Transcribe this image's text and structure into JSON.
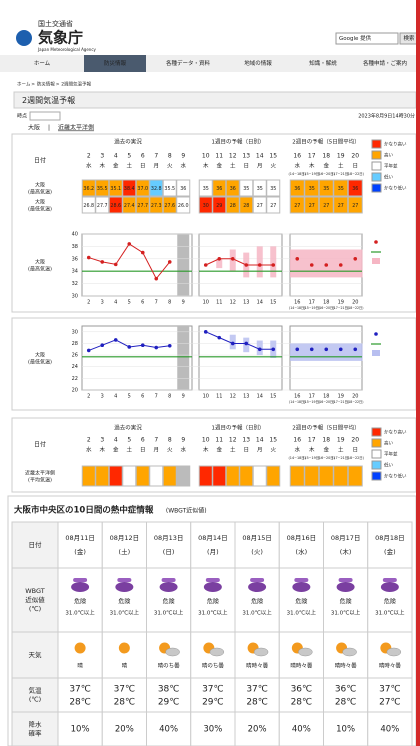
{
  "header": {
    "agency": "国土交通省",
    "title": "気象庁",
    "subtitle": "Japan Meteorological Agency",
    "search_provider": "Google 提供",
    "search_button": "検索"
  },
  "nav": [
    "ホーム",
    "防災情報",
    "各種データ・資料",
    "地域の情報",
    "知識・解説",
    "各種申請・ご案内"
  ],
  "breadcrumb": [
    "ホーム",
    "防災情報",
    "2週間気温予報"
  ],
  "page_title": "2週間気温予報",
  "time_label": "時点",
  "issued": "2023年8月9日14時30分",
  "tabs": [
    "大阪",
    "近畿太平洋側"
  ],
  "forecast": {
    "headers": [
      "過去の実況",
      "1週目の予報（日別）",
      "2週目の予報（5日間平均）"
    ],
    "date_label": "日付",
    "dates": [
      2,
      3,
      4,
      5,
      6,
      7,
      8,
      9,
      10,
      11,
      12,
      13,
      14,
      15,
      16,
      17,
      18,
      19,
      20
    ],
    "weekdays": [
      "水",
      "木",
      "金",
      "土",
      "日",
      "月",
      "火",
      "水",
      "木",
      "金",
      "土",
      "日",
      "月",
      "火",
      "水",
      "木",
      "金",
      "土",
      "日"
    ],
    "week2_ranges": [
      "(14~18日)",
      "(15~19日)",
      "(16~20日)",
      "(17~21日)",
      "(18~22日)"
    ],
    "legend": [
      {
        "label": "かなり高い",
        "color": "#ff2800"
      },
      {
        "label": "高い",
        "color": "#ffa500"
      },
      {
        "label": "平年並",
        "color": "#ffffff"
      },
      {
        "label": "低い",
        "color": "#66ccff"
      },
      {
        "label": "かなり低い",
        "color": "#0041ff"
      }
    ],
    "max": {
      "label": [
        "大阪",
        "(最高気温)"
      ],
      "values": [
        36.2,
        35.5,
        35.1,
        38.4,
        {
          "value": 37,
          "label": "37.0"
        },
        32.8,
        35.5,
        36,
        35,
        36,
        36,
        35,
        35,
        35,
        36,
        35,
        35,
        35,
        36
      ],
      "colors": [
        "#ffa500",
        "#ffa500",
        "#ffa500",
        "#ff2800",
        "#ffa500",
        "#66ccff",
        "#ffffff",
        "#ffffff",
        "#ffffff",
        "#ffa500",
        "#ffa500",
        "#ffffff",
        "#ffffff",
        "#ffffff",
        "#ffa500",
        "#ffa500",
        "#ffa500",
        "#ffa500",
        "#ff2800"
      ],
      "ranges": [
        null,
        null,
        null,
        null,
        null,
        null,
        null,
        null,
        null,
        [
          34.5,
          36
        ],
        [
          34,
          37.5
        ],
        [
          33,
          37
        ],
        [
          33,
          38
        ],
        [
          33,
          38
        ],
        [
          33,
          37.5
        ],
        [
          33,
          37.5
        ],
        [
          33,
          37.5
        ],
        [
          33,
          37.5
        ],
        [
          33,
          37.5
        ]
      ],
      "normal": 34,
      "ylim": [
        30,
        40
      ],
      "yticks": [
        30,
        32,
        34,
        36,
        38,
        40
      ],
      "color": "#d42020"
    },
    "min": {
      "label": [
        "大阪",
        "(最低気温)"
      ],
      "values": [
        26.8,
        27.7,
        28.6,
        27.4,
        27.7,
        27.3,
        27.6,
        {
          "value": 26,
          "label": "26.0"
        },
        30,
        29,
        28,
        28,
        27,
        27,
        27,
        27,
        27,
        27,
        27
      ],
      "colors": [
        "#ffffff",
        "#ffffff",
        "#ff2800",
        "#ffa500",
        "#ffa500",
        "#ffa500",
        "#ffa500",
        "#ffffff",
        "#ff2800",
        "#ff2800",
        "#ffa500",
        "#ffa500",
        "#ffffff",
        "#ffffff",
        "#ffa500",
        "#ffa500",
        "#ffa500",
        "#ffa500",
        "#ffa500"
      ],
      "ranges": [
        null,
        null,
        null,
        null,
        null,
        null,
        null,
        null,
        null,
        null,
        [
          27,
          29.5
        ],
        [
          26.5,
          29
        ],
        [
          26,
          28.5
        ],
        [
          25.5,
          28.5
        ],
        [
          25,
          28
        ],
        [
          25,
          28
        ],
        [
          25,
          28
        ],
        [
          25,
          28
        ],
        [
          25,
          28
        ]
      ],
      "normal": 25.7,
      "ylim": [
        20,
        31
      ],
      "yticks": [
        20,
        22,
        24,
        26,
        28,
        30
      ],
      "color": "#2020c0"
    },
    "kinki": {
      "label": [
        "近畿太平洋側",
        "(平均気温)"
      ],
      "colors": [
        "#ffa500",
        "#ffa500",
        "#ff2800",
        "#ffffff",
        "#ffa500",
        "#ffffff",
        "#ffa500",
        "#bbbbbb",
        "#ff2800",
        "#ff2800",
        "#ffa500",
        "#ffa500",
        "#ffffff",
        "#ffa500",
        "#ffa500",
        "#ffa500",
        "#ffa500",
        "#ffa500",
        "#ffa500"
      ]
    }
  },
  "heat": {
    "title": "大阪市中央区の10日間の熱中症情報",
    "subtitle": "(WBGT近似値)",
    "row_labels": [
      [
        "日付"
      ],
      [
        "WBGT",
        "近似値",
        "(℃)"
      ],
      [
        "天気"
      ],
      [
        "気温",
        "(℃)"
      ],
      [
        "降水",
        "確率"
      ]
    ],
    "days": [
      {
        "date": "08月11日",
        "weekday": "(金)",
        "wbgt": "危険",
        "wbgt_range": "31.0℃以上",
        "weather": "晴",
        "high": "37℃",
        "low": "28℃",
        "pop": "10%"
      },
      {
        "date": "08月12日",
        "weekday": "(土)",
        "wbgt": "危険",
        "wbgt_range": "31.0℃以上",
        "weather": "晴",
        "high": "37℃",
        "low": "28℃",
        "pop": "20%"
      },
      {
        "date": "08月13日",
        "weekday": "(日)",
        "wbgt": "危険",
        "wbgt_range": "31.0℃以上",
        "weather": "晴のち曇",
        "high": "38℃",
        "low": "29℃",
        "pop": "40%"
      },
      {
        "date": "08月14日",
        "weekday": "(月)",
        "wbgt": "危険",
        "wbgt_range": "31.0℃以上",
        "weather": "晴のち曇",
        "high": "37℃",
        "low": "29℃",
        "pop": "30%"
      },
      {
        "date": "08月15日",
        "weekday": "(火)",
        "wbgt": "危険",
        "wbgt_range": "31.0℃以上",
        "weather": "晴時々曇",
        "high": "37℃",
        "low": "28℃",
        "pop": "20%"
      },
      {
        "date": "08月16日",
        "weekday": "(水)",
        "wbgt": "危険",
        "wbgt_range": "31.0℃以上",
        "weather": "晴時々曇",
        "high": "36℃",
        "low": "28℃",
        "pop": "40%"
      },
      {
        "date": "08月17日",
        "weekday": "(木)",
        "wbgt": "危険",
        "wbgt_range": "31.0℃以上",
        "weather": "晴時々曇",
        "high": "36℃",
        "low": "28℃",
        "pop": "10%"
      },
      {
        "date": "08月18日",
        "weekday": "(金)",
        "wbgt": "危険",
        "wbgt_range": "31.0℃以上",
        "weather": "晴時々曇",
        "high": "37℃",
        "low": "27℃",
        "pop": "40%"
      }
    ]
  }
}
